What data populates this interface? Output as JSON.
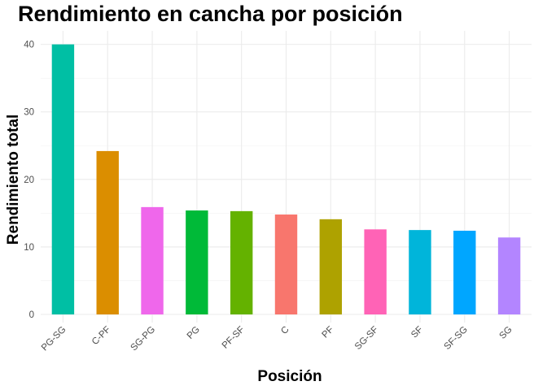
{
  "chart_data": {
    "type": "bar",
    "title": "Rendimiento en cancha por posición",
    "xlabel": "Posición",
    "ylabel": "Rendimiento total",
    "categories": [
      "PG-SG",
      "C-PF",
      "SG-PG",
      "PG",
      "PF-SF",
      "C",
      "PF",
      "SG-SF",
      "SF",
      "SF-SG",
      "SG"
    ],
    "values": [
      40.0,
      24.2,
      15.9,
      15.4,
      15.3,
      14.8,
      14.1,
      12.6,
      12.5,
      12.4,
      11.4
    ],
    "colors": [
      "#00BFA4",
      "#DB8E00",
      "#EF67EB",
      "#00BA38",
      "#64B200",
      "#F8766D",
      "#AEA200",
      "#FF63B6",
      "#00B5DA",
      "#00A6FF",
      "#B385FF"
    ],
    "ylim": [
      0,
      42
    ],
    "yticks": [
      0,
      10,
      20,
      30,
      40
    ],
    "grid": true,
    "legend": "none"
  }
}
